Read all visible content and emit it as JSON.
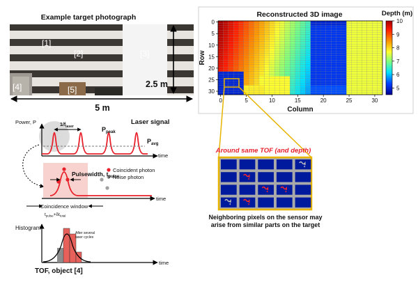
{
  "photo": {
    "title": "Example target photograph",
    "labels": [
      "[1]",
      "[2]",
      "[3]",
      "[4]",
      "[5]"
    ],
    "height_label": "2.5 m",
    "width_label": "5 m"
  },
  "recon": {
    "title": "Reconstructed 3D image",
    "ylabel": "Row",
    "xlabel": "Column",
    "xticks": [
      "0",
      "5",
      "10",
      "15",
      "20",
      "25",
      "30"
    ],
    "yticks": [
      "0",
      "5",
      "10",
      "15",
      "20",
      "25",
      "30"
    ],
    "colorbar": {
      "title": "Depth (m)",
      "ticks": [
        "10",
        "9",
        "8",
        "7",
        "6",
        "5"
      ],
      "min": 4.5,
      "max": 10
    }
  },
  "signal": {
    "power_label": "Power, P",
    "period_label": "1/f",
    "period_sub": "laser",
    "peak_label": "P",
    "peak_sub": "peak",
    "laser_label": "Laser signal",
    "avg_label": "P",
    "avg_sub": "avg",
    "time_label": "time"
  },
  "pulse": {
    "legend_coincident": "Coincident photon",
    "legend_noise": "Noise photon",
    "pulsewidth_label": "Pulsewidth, t",
    "pulsewidth_sub": "pulse",
    "window_label": "Coincidence window",
    "window_sub_a": "t",
    "window_sub_a_sub": "pulse",
    "window_sub_b": "+δt",
    "window_sub_b_sub": "total",
    "time_label": "time"
  },
  "histogram": {
    "label": "Histogram",
    "note_line1": "After several",
    "note_line2": "laser cycles",
    "caption": "TOF, object [4]",
    "time_label": "time"
  },
  "zoom": {
    "title": "Around same TOF (and depth)",
    "caption_line1": "Neighboring pixels on the sensor may",
    "caption_line2": "arise from similar parts on the target"
  },
  "colors": {
    "accent_red": "#e8202a",
    "zoom_gold": "#e8b400",
    "pixel_blue": "#001a9e",
    "grid_gray": "#a9a9a9"
  }
}
